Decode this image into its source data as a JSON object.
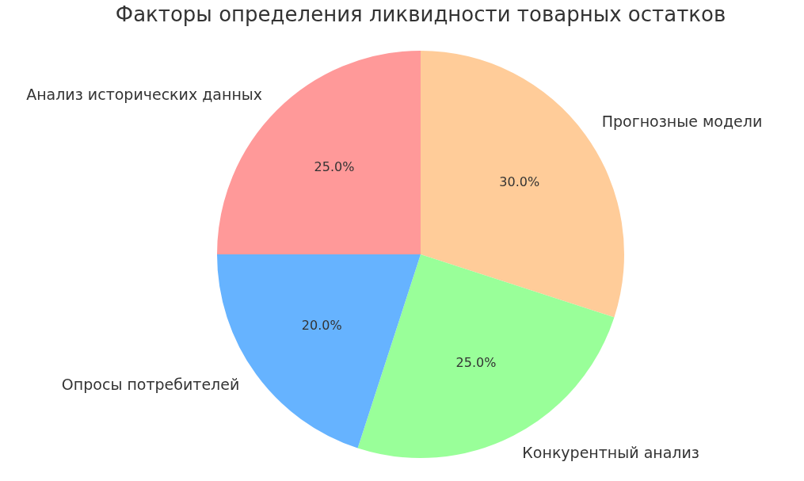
{
  "chart_data": {
    "type": "pie",
    "title": "Факторы определения ликвидности товарных остатков",
    "categories": [
      "Прогнозные модели",
      "Конкурентный анализ",
      "Опросы потребителей",
      "Анализ исторических данных"
    ],
    "values": [
      30,
      25,
      20,
      25
    ],
    "colors": [
      "#ffcc99",
      "#99ff99",
      "#66b3ff",
      "#ff9999"
    ],
    "value_labels": [
      "30.0%",
      "25.0%",
      "20.0%",
      "25.0%"
    ],
    "legend": false
  }
}
